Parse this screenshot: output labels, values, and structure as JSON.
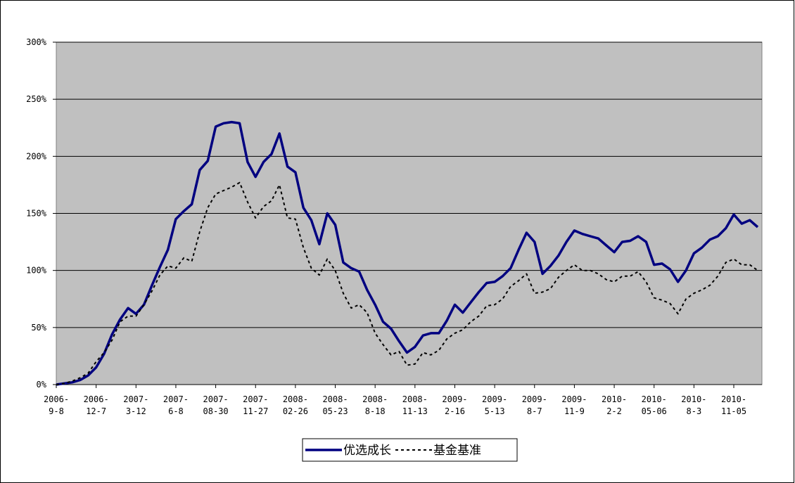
{
  "chart_data": {
    "type": "line",
    "categories": [
      "2006-9-8",
      null,
      null,
      null,
      null,
      "2006-12-7",
      null,
      null,
      null,
      null,
      "2007-3-12",
      null,
      null,
      null,
      null,
      "2007-6-8",
      null,
      null,
      null,
      null,
      "2007-08-30",
      null,
      null,
      null,
      null,
      "2007-11-27",
      null,
      null,
      null,
      null,
      "2008-02-26",
      null,
      null,
      null,
      null,
      "2008-05-23",
      null,
      null,
      null,
      null,
      "2008-8-18",
      null,
      null,
      null,
      null,
      "2008-11-13",
      null,
      null,
      null,
      null,
      "2009-2-16",
      null,
      null,
      null,
      null,
      "2009-5-13",
      null,
      null,
      null,
      null,
      "2009-8-7",
      null,
      null,
      null,
      null,
      "2009-11-9",
      null,
      null,
      null,
      null,
      "2010-2-2",
      null,
      null,
      null,
      null,
      "2010-05-06",
      null,
      null,
      null,
      null,
      "2010-8-3",
      null,
      null,
      null,
      null,
      "2010-11-05",
      null,
      null,
      null
    ],
    "series": [
      {
        "name": "优选成长",
        "color": "#000080",
        "dash": false,
        "values": [
          0,
          1,
          2,
          4,
          8,
          15,
          27,
          44,
          57,
          67,
          62,
          70,
          87,
          103,
          118,
          145,
          152,
          158,
          188,
          196,
          226,
          229,
          230,
          229,
          195,
          182,
          195,
          202,
          220,
          191,
          186,
          155,
          144,
          123,
          150,
          140,
          107,
          102,
          99,
          83,
          70,
          55,
          49,
          38,
          28,
          33,
          43,
          45,
          45,
          56,
          70,
          63,
          72,
          81,
          89,
          90,
          95,
          102,
          118,
          133,
          125,
          97,
          104,
          113,
          125,
          135,
          132,
          130,
          128,
          122,
          116,
          125,
          126,
          130,
          125,
          105,
          106,
          101,
          90,
          100,
          115,
          120,
          127,
          130,
          137,
          149,
          141,
          144,
          138
        ]
      },
      {
        "name": "基金基准",
        "color": "#000000",
        "dash": true,
        "values": [
          0,
          1,
          3,
          6,
          10,
          20,
          28,
          39,
          55,
          60,
          60,
          70,
          82,
          96,
          104,
          102,
          111,
          108,
          134,
          155,
          167,
          170,
          173,
          177,
          160,
          146,
          156,
          161,
          175,
          146,
          145,
          120,
          102,
          96,
          110,
          100,
          80,
          67,
          70,
          63,
          45,
          35,
          26,
          29,
          17,
          18,
          28,
          26,
          30,
          40,
          45,
          48,
          55,
          60,
          69,
          70,
          75,
          86,
          91,
          97,
          80,
          81,
          84,
          94,
          100,
          105,
          100,
          100,
          97,
          92,
          90,
          95,
          95,
          99,
          90,
          76,
          74,
          71,
          62,
          75,
          80,
          83,
          87,
          95,
          107,
          110,
          105,
          105,
          100
        ]
      }
    ],
    "ylim": [
      0,
      300
    ],
    "yticks": [
      {
        "value": 0,
        "label": "0%"
      },
      {
        "value": 50,
        "label": "50%"
      },
      {
        "value": 100,
        "label": "100%"
      },
      {
        "value": 150,
        "label": "150%"
      },
      {
        "value": 200,
        "label": "200%"
      },
      {
        "value": 250,
        "label": "250%"
      },
      {
        "value": 300,
        "label": "300%"
      }
    ],
    "grid": true,
    "legend": "bottom"
  }
}
